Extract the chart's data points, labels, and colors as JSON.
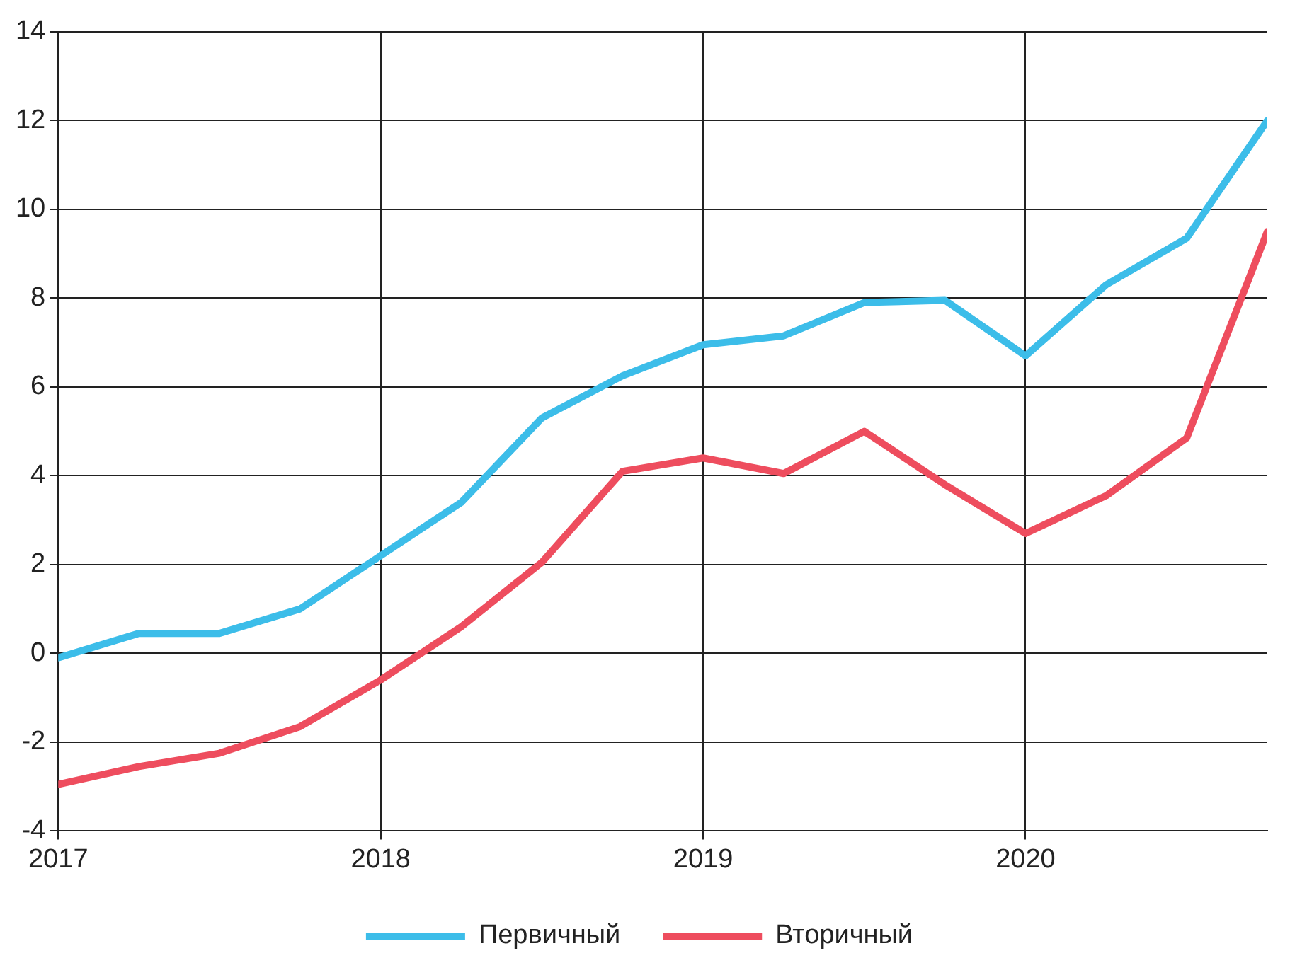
{
  "chart_data": {
    "type": "line",
    "x": [
      2017,
      2017.25,
      2017.5,
      2017.75,
      2018,
      2018.25,
      2018.5,
      2018.75,
      2019,
      2019.25,
      2019.5,
      2019.75,
      2020,
      2020.25,
      2020.5,
      2020.75
    ],
    "series": [
      {
        "name": "Первичный",
        "color": "#3cbde9",
        "values": [
          -0.1,
          0.45,
          0.45,
          1.0,
          2.2,
          3.4,
          5.3,
          6.25,
          6.95,
          7.15,
          7.9,
          7.95,
          6.7,
          8.3,
          9.35,
          12.0
        ]
      },
      {
        "name": "Вторичный",
        "color": "#ee4d5e",
        "values": [
          -2.95,
          -2.55,
          -2.25,
          -1.65,
          -0.6,
          0.6,
          2.05,
          4.1,
          4.4,
          4.05,
          5.0,
          3.8,
          2.7,
          3.55,
          4.85,
          9.5
        ]
      }
    ],
    "xlim": [
      2017,
      2020.75
    ],
    "xticks": [
      2017,
      2018,
      2019,
      2020
    ],
    "ylim": [
      -4,
      14
    ],
    "yticks": [
      -4,
      -2,
      0,
      2,
      4,
      6,
      8,
      10,
      12,
      14
    ],
    "grid": true,
    "legend": "bottom",
    "marker": "none",
    "line_style": "solid"
  }
}
